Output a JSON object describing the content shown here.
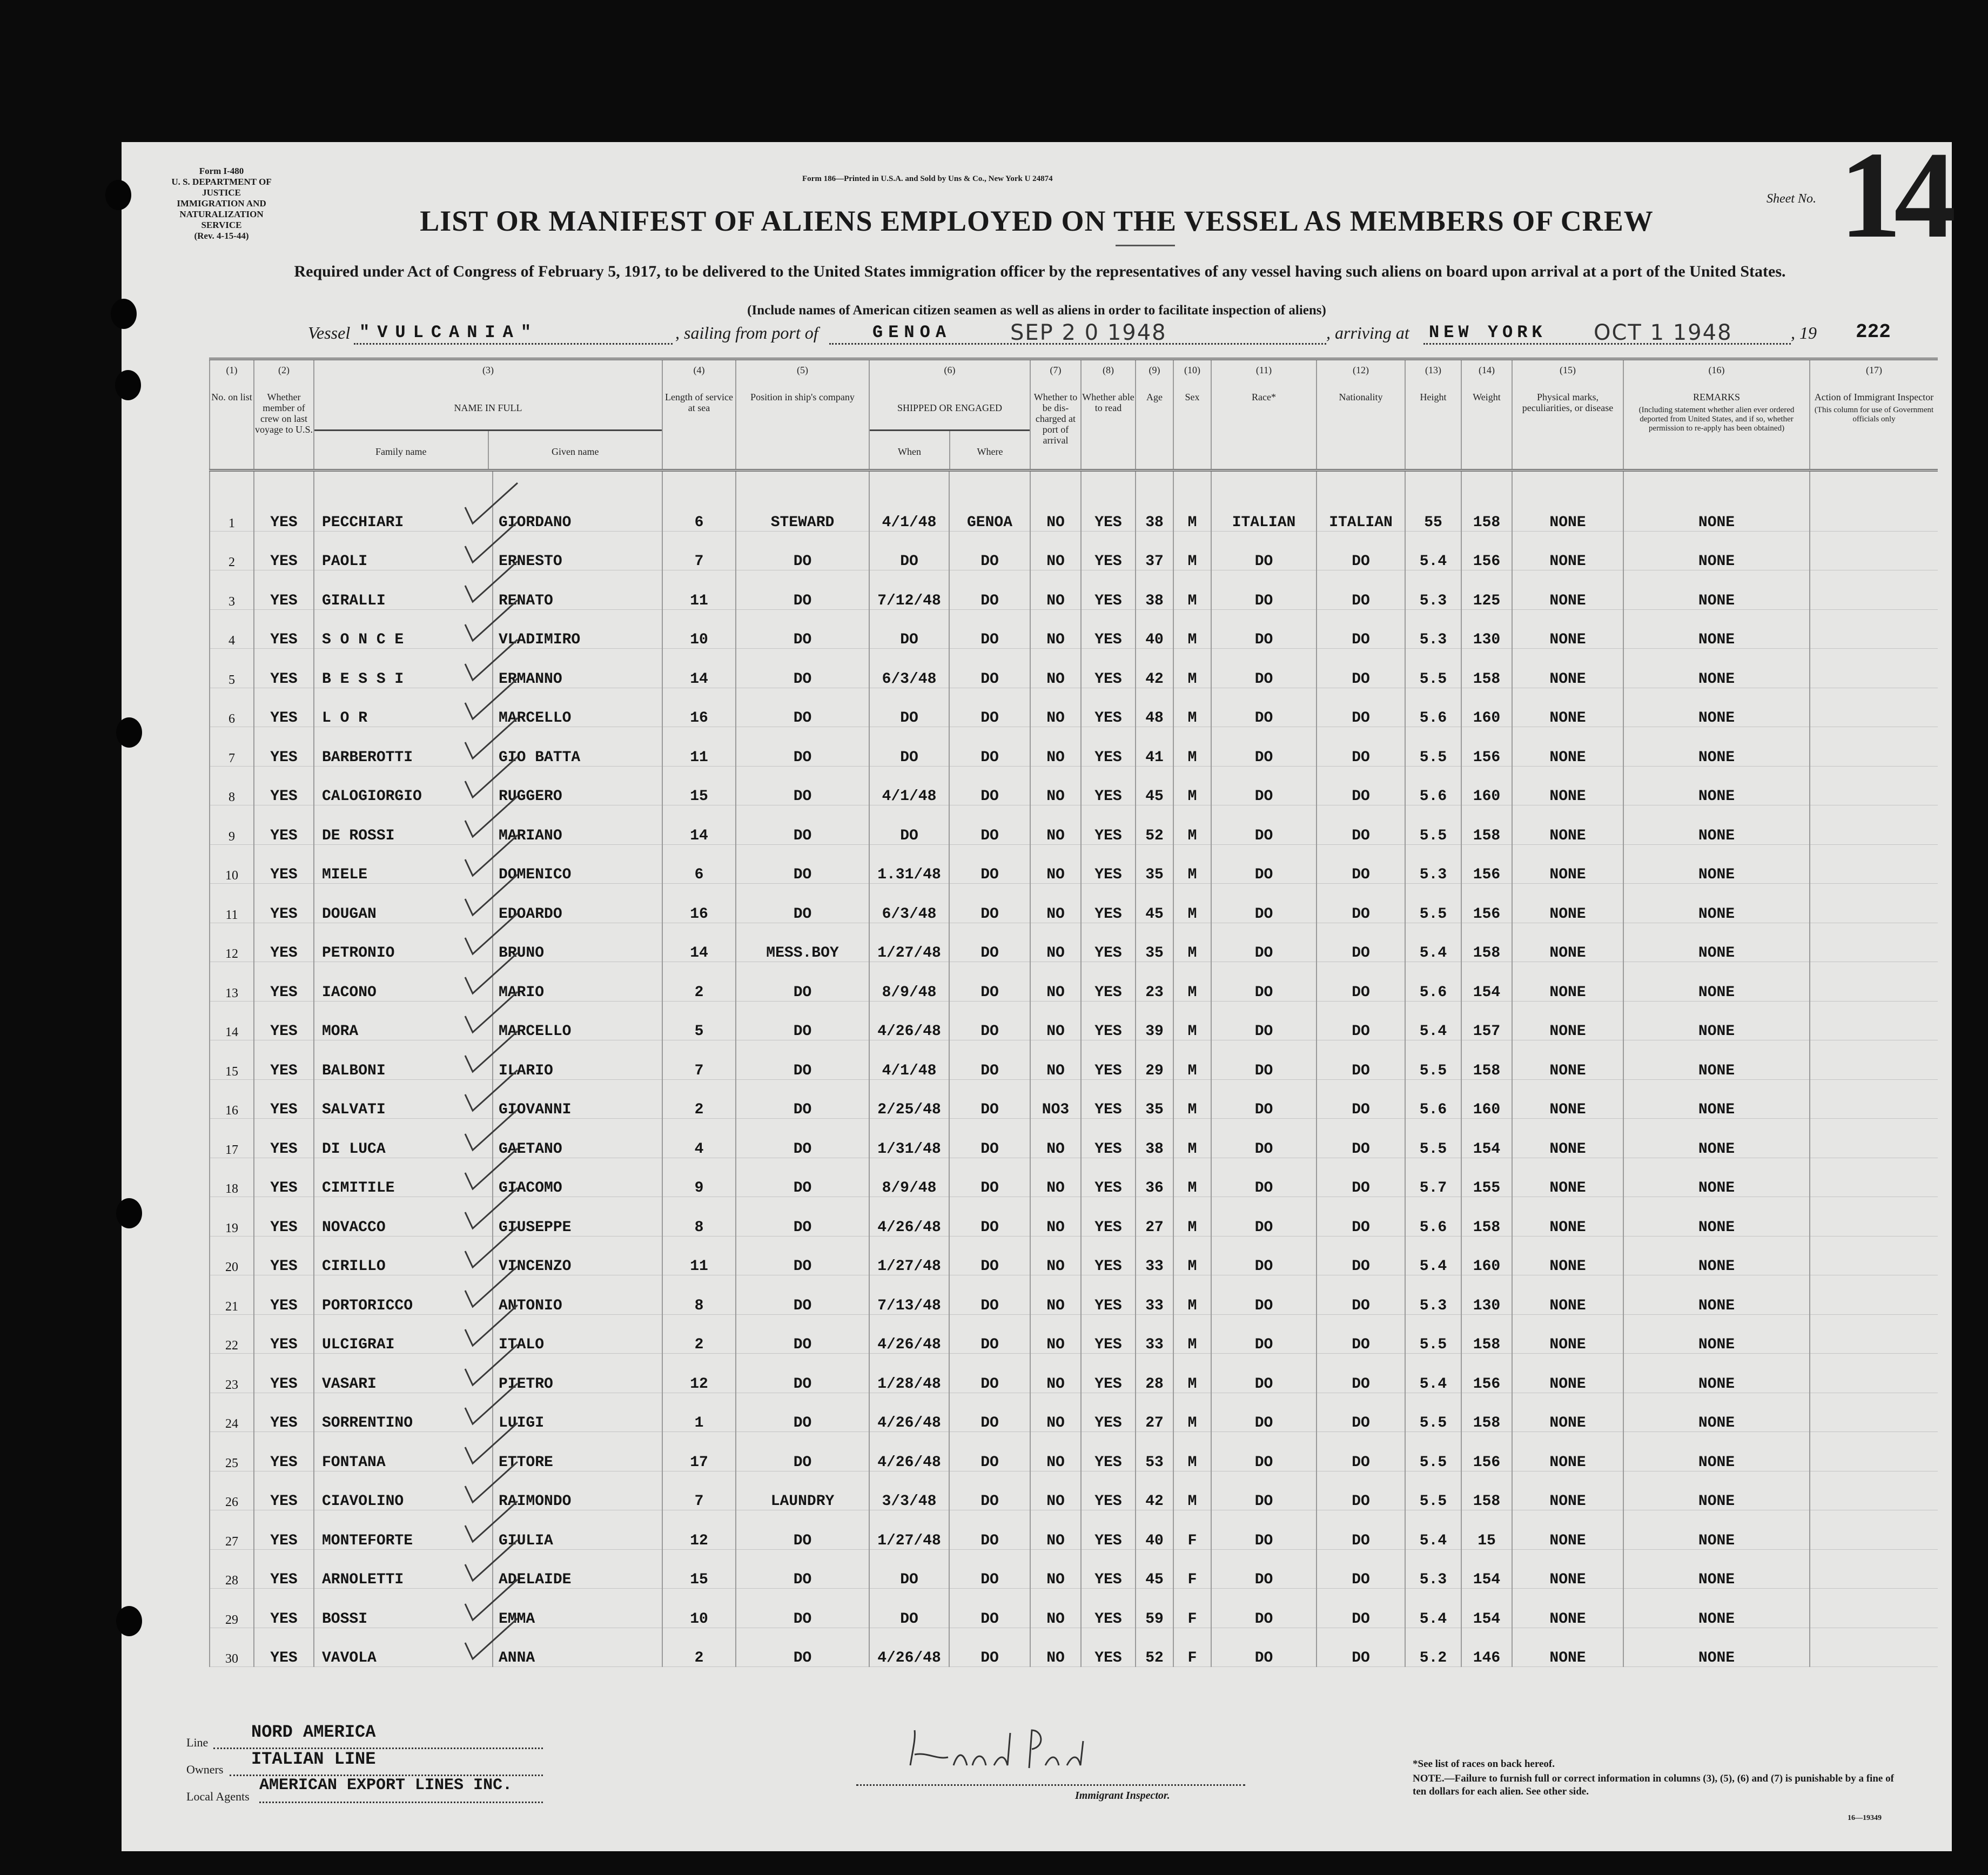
{
  "form": {
    "form_no": "Form I-480",
    "dept": "U. S. DEPARTMENT OF JUSTICE",
    "service": "IMMIGRATION AND NATURALIZATION SERVICE",
    "rev": "(Rev. 4-15-44)",
    "printer": "Form 186—Printed in U.S.A. and Sold by Uns & Co., New York  U 24874",
    "sheet_label": "Sheet No.",
    "sheet_no": "14",
    "title": "LIST OR MANIFEST OF ALIENS EMPLOYED ON THE VESSEL AS MEMBERS OF CREW",
    "subtitle": "Required under Act of Congress of February 5, 1917, to be delivered to the United States immigration officer by the representatives of any vessel having such aliens on board upon arrival at a port of the United States.",
    "include_note": "(Include names of American citizen seamen as well as aliens in order to facilitate inspection of aliens)"
  },
  "voyage": {
    "vessel_label": "Vessel",
    "vessel": "\"VULCANIA\"",
    "sailing_label": ", sailing from port of",
    "port": "GENOA",
    "sail_date_stamp": "SEP 2 0 1948",
    "arriving_label": ", arriving at",
    "arrival_port": "NEW YORK",
    "arrival_date_stamp": "OCT 1  1948",
    "year_label": ", 19",
    "stamp_no": "222"
  },
  "columns": [
    {
      "num": "(1)",
      "label": "No. on list"
    },
    {
      "num": "(2)",
      "label": "Whether member of crew on last voyage to U.S."
    },
    {
      "num": "(3)",
      "label": "NAME IN FULL",
      "sub": [
        "Family name",
        "Given name"
      ]
    },
    {
      "num": "(4)",
      "label": "Length of service at sea"
    },
    {
      "num": "(5)",
      "label": "Position in ship's company"
    },
    {
      "num": "(6)",
      "label": "SHIPPED OR ENGAGED",
      "sub": [
        "When",
        "Where"
      ]
    },
    {
      "num": "(7)",
      "label": "Whether to be dis-charged at port of arrival"
    },
    {
      "num": "(8)",
      "label": "Whether able to read"
    },
    {
      "num": "(9)",
      "label": "Age"
    },
    {
      "num": "(10)",
      "label": "Sex"
    },
    {
      "num": "(11)",
      "label": "Race*"
    },
    {
      "num": "(12)",
      "label": "Nationality"
    },
    {
      "num": "(13)",
      "label": "Height"
    },
    {
      "num": "(14)",
      "label": "Weight"
    },
    {
      "num": "(15)",
      "label": "Physical marks, peculiarities, or disease"
    },
    {
      "num": "(16)",
      "label": "REMARKS",
      "sub_note": "(Including statement whether alien ever ordered deported from United States, and if so, whether permission to re-apply has been obtained)"
    },
    {
      "num": "(17)",
      "label": "Action of Immigrant Inspector",
      "sub_note": "(This column for use of Government officials only"
    }
  ],
  "rows": [
    [
      "1",
      "YES",
      "PECCHIARI",
      "GIORDANO",
      "6",
      "STEWARD",
      "4/1/48",
      "GENOA",
      "NO",
      "YES",
      "38",
      "M",
      "ITALIAN",
      "ITALIAN",
      "55",
      "158",
      "NONE",
      "NONE",
      ""
    ],
    [
      "2",
      "YES",
      "PAOLI",
      "ERNESTO",
      "7",
      "DO",
      "DO",
      "DO",
      "NO",
      "YES",
      "37",
      "M",
      "DO",
      "DO",
      "5.4",
      "156",
      "NONE",
      "NONE",
      ""
    ],
    [
      "3",
      "YES",
      "GIRALLI",
      "RENATO",
      "11",
      "DO",
      "7/12/48",
      "DO",
      "NO",
      "YES",
      "38",
      "M",
      "DO",
      "DO",
      "5.3",
      "125",
      "NONE",
      "NONE",
      ""
    ],
    [
      "4",
      "YES",
      "S O N C E",
      "VLADIMIRO",
      "10",
      "DO",
      "DO",
      "DO",
      "NO",
      "YES",
      "40",
      "M",
      "DO",
      "DO",
      "5.3",
      "130",
      "NONE",
      "NONE",
      ""
    ],
    [
      "5",
      "YES",
      "B E S S I",
      "ERMANNO",
      "14",
      "DO",
      "6/3/48",
      "DO",
      "NO",
      "YES",
      "42",
      "M",
      "DO",
      "DO",
      "5.5",
      "158",
      "NONE",
      "NONE",
      ""
    ],
    [
      "6",
      "YES",
      "L O R",
      "MARCELLO",
      "16",
      "DO",
      "DO",
      "DO",
      "NO",
      "YES",
      "48",
      "M",
      "DO",
      "DO",
      "5.6",
      "160",
      "NONE",
      "NONE",
      ""
    ],
    [
      "7",
      "YES",
      "BARBEROTTI",
      "GIO BATTA",
      "11",
      "DO",
      "DO",
      "DO",
      "NO",
      "YES",
      "41",
      "M",
      "DO",
      "DO",
      "5.5",
      "156",
      "NONE",
      "NONE",
      ""
    ],
    [
      "8",
      "YES",
      "CALOGIORGIO",
      "RUGGERO",
      "15",
      "DO",
      "4/1/48",
      "DO",
      "NO",
      "YES",
      "45",
      "M",
      "DO",
      "DO",
      "5.6",
      "160",
      "NONE",
      "NONE",
      ""
    ],
    [
      "9",
      "YES",
      "DE ROSSI",
      "MARIANO",
      "14",
      "DO",
      "DO",
      "DO",
      "NO",
      "YES",
      "52",
      "M",
      "DO",
      "DO",
      "5.5",
      "158",
      "NONE",
      "NONE",
      ""
    ],
    [
      "10",
      "YES",
      "MIELE",
      "DOMENICO",
      "6",
      "DO",
      "1.31/48",
      "DO",
      "NO",
      "YES",
      "35",
      "M",
      "DO",
      "DO",
      "5.3",
      "156",
      "NONE",
      "NONE",
      ""
    ],
    [
      "11",
      "YES",
      "DOUGAN",
      "EDOARDO",
      "16",
      "DO",
      "6/3/48",
      "DO",
      "NO",
      "YES",
      "45",
      "M",
      "DO",
      "DO",
      "5.5",
      "156",
      "NONE",
      "NONE",
      ""
    ],
    [
      "12",
      "YES",
      "PETRONIO",
      "BRUNO",
      "14",
      "MESS.BOY",
      "1/27/48",
      "DO",
      "NO",
      "YES",
      "35",
      "M",
      "DO",
      "DO",
      "5.4",
      "158",
      "NONE",
      "NONE",
      ""
    ],
    [
      "13",
      "YES",
      "IACONO",
      "MARIO",
      "2",
      "DO",
      "8/9/48",
      "DO",
      "NO",
      "YES",
      "23",
      "M",
      "DO",
      "DO",
      "5.6",
      "154",
      "NONE",
      "NONE",
      ""
    ],
    [
      "14",
      "YES",
      "MORA",
      "MARCELLO",
      "5",
      "DO",
      "4/26/48",
      "DO",
      "NO",
      "YES",
      "39",
      "M",
      "DO",
      "DO",
      "5.4",
      "157",
      "NONE",
      "NONE",
      ""
    ],
    [
      "15",
      "YES",
      "BALBONI",
      "ILARIO",
      "7",
      "DO",
      "4/1/48",
      "DO",
      "NO",
      "YES",
      "29",
      "M",
      "DO",
      "DO",
      "5.5",
      "158",
      "NONE",
      "NONE",
      ""
    ],
    [
      "16",
      "YES",
      "SALVATI",
      "GIOVANNI",
      "2",
      "DO",
      "2/25/48",
      "DO",
      "NO3",
      "YES",
      "35",
      "M",
      "DO",
      "DO",
      "5.6",
      "160",
      "NONE",
      "NONE",
      ""
    ],
    [
      "17",
      "YES",
      "DI LUCA",
      "GAETANO",
      "4",
      "DO",
      "1/31/48",
      "DO",
      "NO",
      "YES",
      "38",
      "M",
      "DO",
      "DO",
      "5.5",
      "154",
      "NONE",
      "NONE",
      ""
    ],
    [
      "18",
      "YES",
      "CIMITILE",
      "GIACOMO",
      "9",
      "DO",
      "8/9/48",
      "DO",
      "NO",
      "YES",
      "36",
      "M",
      "DO",
      "DO",
      "5.7",
      "155",
      "NONE",
      "NONE",
      ""
    ],
    [
      "19",
      "YES",
      "NOVACCO",
      "GIUSEPPE",
      "8",
      "DO",
      "4/26/48",
      "DO",
      "NO",
      "YES",
      "27",
      "M",
      "DO",
      "DO",
      "5.6",
      "158",
      "NONE",
      "NONE",
      ""
    ],
    [
      "20",
      "YES",
      "CIRILLO",
      "VINCENZO",
      "11",
      "DO",
      "1/27/48",
      "DO",
      "NO",
      "YES",
      "33",
      "M",
      "DO",
      "DO",
      "5.4",
      "160",
      "NONE",
      "NONE",
      ""
    ],
    [
      "21",
      "YES",
      "PORTORICCO",
      "ANTONIO",
      "8",
      "DO",
      "7/13/48",
      "DO",
      "NO",
      "YES",
      "33",
      "M",
      "DO",
      "DO",
      "5.3",
      "130",
      "NONE",
      "NONE",
      ""
    ],
    [
      "22",
      "YES",
      "ULCIGRAI",
      "ITALO",
      "2",
      "DO",
      "4/26/48",
      "DO",
      "NO",
      "YES",
      "33",
      "M",
      "DO",
      "DO",
      "5.5",
      "158",
      "NONE",
      "NONE",
      ""
    ],
    [
      "23",
      "YES",
      "VASARI",
      "PIETRO",
      "12",
      "DO",
      "1/28/48",
      "DO",
      "NO",
      "YES",
      "28",
      "M",
      "DO",
      "DO",
      "5.4",
      "156",
      "NONE",
      "NONE",
      ""
    ],
    [
      "24",
      "YES",
      "SORRENTINO",
      "LUIGI",
      "1",
      "DO",
      "4/26/48",
      "DO",
      "NO",
      "YES",
      "27",
      "M",
      "DO",
      "DO",
      "5.5",
      "158",
      "NONE",
      "NONE",
      ""
    ],
    [
      "25",
      "YES",
      "FONTANA",
      "ETTORE",
      "17",
      "DO",
      "4/26/48",
      "DO",
      "NO",
      "YES",
      "53",
      "M",
      "DO",
      "DO",
      "5.5",
      "156",
      "NONE",
      "NONE",
      ""
    ],
    [
      "26",
      "YES",
      "CIAVOLINO",
      "RAIMONDO",
      "7",
      "LAUNDRY",
      "3/3/48",
      "DO",
      "NO",
      "YES",
      "42",
      "M",
      "DO",
      "DO",
      "5.5",
      "158",
      "NONE",
      "NONE",
      ""
    ],
    [
      "27",
      "YES",
      "MONTEFORTE",
      "GIULIA",
      "12",
      "DO",
      "1/27/48",
      "DO",
      "NO",
      "YES",
      "40",
      "F",
      "DO",
      "DO",
      "5.4",
      "15",
      "NONE",
      "NONE",
      ""
    ],
    [
      "28",
      "YES",
      "ARNOLETTI",
      "ADELAIDE",
      "15",
      "DO",
      "DO",
      "DO",
      "NO",
      "YES",
      "45",
      "F",
      "DO",
      "DO",
      "5.3",
      "154",
      "NONE",
      "NONE",
      ""
    ],
    [
      "29",
      "YES",
      "BOSSI",
      "EMMA",
      "10",
      "DO",
      "DO",
      "DO",
      "NO",
      "YES",
      "59",
      "F",
      "DO",
      "DO",
      "5.4",
      "154",
      "NONE",
      "NONE",
      ""
    ],
    [
      "30",
      "YES",
      "VAVOLA",
      "ANNA",
      "2",
      "DO",
      "4/26/48",
      "DO",
      "NO",
      "YES",
      "52",
      "F",
      "DO",
      "DO",
      "5.2",
      "146",
      "NONE",
      "NONE",
      ""
    ]
  ],
  "footer": {
    "line_label": "Line",
    "line": "NORD   AMERICA",
    "owners_label": "Owners",
    "owners": "ITALIAN   LINE",
    "agents_label": "Local Agents",
    "agents": "AMERICAN  EXPORT LINES INC.",
    "signature": "Harold Card",
    "inspector_label": "Immigrant Inspector.",
    "races_note": "*See list of races on back hereof.",
    "note": "NOTE.—Failure to furnish full or correct information in columns (3), (5), (6) and (7) is punishable by a fine of ten dollars for each alien. See other side.",
    "code": "16—19349"
  }
}
